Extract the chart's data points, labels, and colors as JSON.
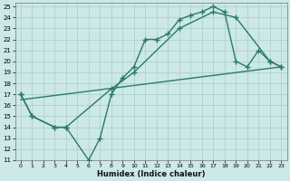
{
  "xlabel": "Humidex (Indice chaleur)",
  "bg_color": "#cce8e8",
  "grid_color": "#aacccc",
  "line_color": "#2a7a6a",
  "xlim": [
    -0.5,
    23.5
  ],
  "ylim": [
    11,
    25.3
  ],
  "xticks": [
    0,
    1,
    2,
    3,
    4,
    5,
    6,
    7,
    8,
    9,
    10,
    11,
    12,
    13,
    14,
    15,
    16,
    17,
    18,
    19,
    20,
    21,
    22,
    23
  ],
  "yticks": [
    11,
    12,
    13,
    14,
    15,
    16,
    17,
    18,
    19,
    20,
    21,
    22,
    23,
    24,
    25
  ],
  "line1_x": [
    0,
    1,
    3,
    4,
    6,
    7,
    8,
    9,
    10,
    11,
    12,
    13,
    14,
    15,
    16,
    17,
    18,
    19,
    20,
    21,
    22,
    23
  ],
  "line1_y": [
    17,
    15,
    14,
    14,
    11,
    13,
    17,
    18.5,
    19.5,
    22,
    22,
    22.5,
    23.8,
    24.2,
    24.5,
    25,
    24.5,
    20,
    19.5,
    21,
    20,
    19.5
  ],
  "line2_x": [
    0,
    1,
    3,
    4,
    8,
    10,
    14,
    17,
    19,
    22,
    23
  ],
  "line2_y": [
    17,
    15,
    14,
    14,
    17.5,
    19,
    23,
    24.5,
    24,
    20,
    19.5
  ],
  "line3_x": [
    0,
    23
  ],
  "line3_y": [
    16.5,
    19.5
  ],
  "marker": "+",
  "markersize": 4,
  "linewidth": 1.0
}
